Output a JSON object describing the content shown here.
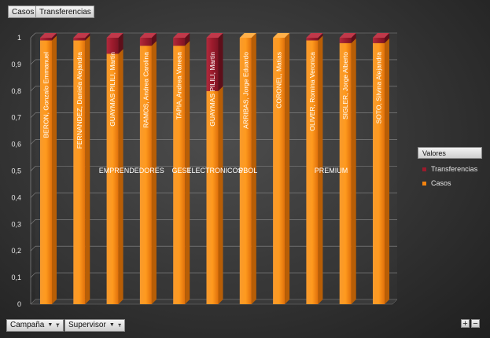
{
  "toolbar": {
    "series_buttons": [
      "Casos",
      "Transferencias"
    ]
  },
  "filters": [
    {
      "label": "Campaña",
      "icon": "funnel-icon"
    },
    {
      "label": "Supervisor",
      "icon": "funnel-icon"
    }
  ],
  "legend": {
    "title": "Valores",
    "items": [
      {
        "label": "Transferencias",
        "color": "#9b1b2c"
      },
      {
        "label": "Casos",
        "color": "#f5830f"
      }
    ]
  },
  "zoom": {
    "plus": "+",
    "minus": "−"
  },
  "chart_data": {
    "type": "bar",
    "stacked": "percent",
    "ylim": [
      0,
      1
    ],
    "yticks": [
      "0",
      "0,1",
      "0,2",
      "0,3",
      "0,4",
      "0,5",
      "0,6",
      "0,7",
      "0,8",
      "0,9",
      "1"
    ],
    "grid": true,
    "legend_position": "right",
    "categories": [
      "BERON, Gonzalo Emmanuel",
      "FERNANDEZ, Daniela Alejandra",
      "GUAYMAS PILILI, Martin",
      "RAMOS, Andrea Carolina",
      "TAPIA, Andrea Vanesa",
      "GUAYMAS PILILI, Martin",
      "ARRIBAS, Jorge Eduardo",
      "CORONEL, Matias",
      "OLIVER, Romina Veronica",
      "SIGLER, Jorge Alberto",
      "SOTO, Silvina Alejandra"
    ],
    "groups": [
      {
        "label": "EMPRENDEDORES",
        "from": 1,
        "to": 4
      },
      {
        "label": "GEST",
        "from": 4,
        "to": 4
      },
      {
        "label": "ELECTRONICOS",
        "from": 5,
        "to": 5
      },
      {
        "label": "PBOL",
        "from": 6,
        "to": 6
      },
      {
        "label": "PREMIUM",
        "from": 7,
        "to": 10
      }
    ],
    "series": [
      {
        "name": "Casos",
        "color": "#f5830f",
        "values": [
          0.99,
          0.99,
          0.94,
          0.97,
          0.97,
          0.8,
          1.0,
          1.0,
          0.99,
          0.98,
          0.98
        ]
      },
      {
        "name": "Transferencias",
        "color": "#9b1b2c",
        "values": [
          0.01,
          0.01,
          0.06,
          0.03,
          0.03,
          0.2,
          0.0,
          0.0,
          0.01,
          0.02,
          0.02
        ]
      }
    ]
  }
}
